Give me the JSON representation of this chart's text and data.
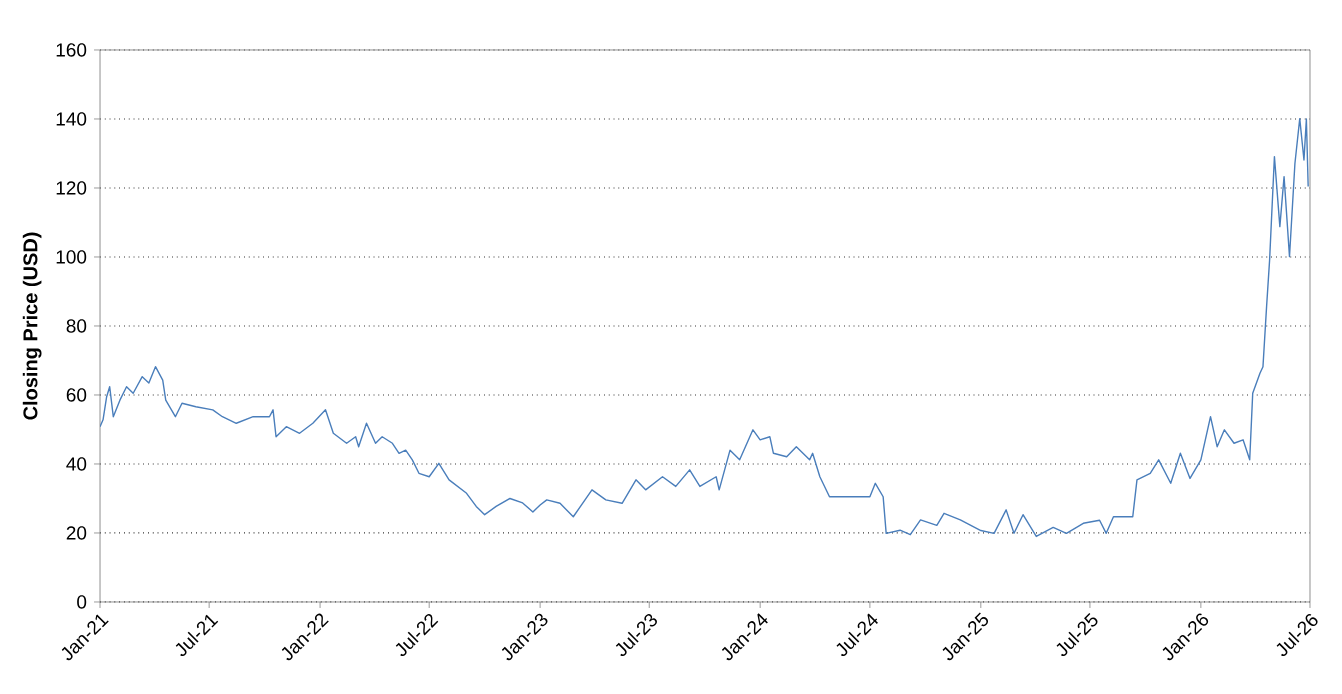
{
  "chart_data": {
    "type": "line",
    "ylabel": "Closing Price (USD)",
    "grid": "y",
    "line_style": "solid",
    "color": "#4a7ebb",
    "xlim": [
      "2021-01",
      "2026-07"
    ],
    "ylim": [
      0,
      160
    ],
    "yticks": [
      0,
      20,
      40,
      60,
      80,
      100,
      120,
      140,
      160
    ],
    "xticks": [
      {
        "value": "2021-01",
        "label": "Jan-21"
      },
      {
        "value": "2021-07",
        "label": "Jul-21"
      },
      {
        "value": "2022-01",
        "label": "Jan-22"
      },
      {
        "value": "2022-07",
        "label": "Jul-22"
      },
      {
        "value": "2023-01",
        "label": "Jan-23"
      },
      {
        "value": "2023-07",
        "label": "Jul-23"
      },
      {
        "value": "2024-01",
        "label": "Jan-24"
      },
      {
        "value": "2024-07",
        "label": "Jul-24"
      },
      {
        "value": "2025-01",
        "label": "Jan-25"
      },
      {
        "value": "2025-07",
        "label": "Jul-25"
      },
      {
        "value": "2026-01",
        "label": "Jan-26"
      },
      {
        "value": "2026-07",
        "label": "Jul-26"
      }
    ],
    "x": [
      "2021-01-01",
      "2021-01-06",
      "2021-01-12",
      "2021-01-17",
      "2021-01-23",
      "2021-02-03",
      "2021-02-14",
      "2021-02-25",
      "2021-03-12",
      "2021-03-23",
      "2021-04-03",
      "2021-04-15",
      "2021-04-20",
      "2021-05-06",
      "2021-05-17",
      "2021-06-09",
      "2021-07-07",
      "2021-07-23",
      "2021-08-15",
      "2021-09-12",
      "2021-10-09",
      "2021-10-15",
      "2021-10-20",
      "2021-11-06",
      "2021-11-28",
      "2021-12-20",
      "2022-01-10",
      "2022-01-23",
      "2022-02-14",
      "2022-03-01",
      "2022-03-06",
      "2022-03-19",
      "2022-04-03",
      "2022-04-14",
      "2022-05-01",
      "2022-05-12",
      "2022-05-23",
      "2022-06-03",
      "2022-06-14",
      "2022-07-01",
      "2022-07-17",
      "2022-08-03",
      "2022-09-01",
      "2022-09-17",
      "2022-10-01",
      "2022-10-20",
      "2022-11-12",
      "2022-12-03",
      "2022-12-20",
      "2023-01-01",
      "2023-01-12",
      "2023-02-03",
      "2023-02-25",
      "2023-03-28",
      "2023-04-20",
      "2023-05-17",
      "2023-06-09",
      "2023-06-25",
      "2023-07-23",
      "2023-08-14",
      "2023-09-06",
      "2023-09-23",
      "2023-10-20",
      "2023-10-25",
      "2023-11-12",
      "2023-11-28",
      "2023-12-20",
      "2024-01-01",
      "2024-01-17",
      "2024-01-23",
      "2024-02-14",
      "2024-03-01",
      "2024-03-23",
      "2024-03-28",
      "2024-04-09",
      "2024-04-25",
      "2024-05-23",
      "2024-07-01",
      "2024-07-10",
      "2024-07-23",
      "2024-07-28",
      "2024-08-20",
      "2024-09-06",
      "2024-09-23",
      "2024-10-20",
      "2024-11-01",
      "2024-11-28",
      "2025-01-01",
      "2025-01-23",
      "2025-02-12",
      "2025-02-25",
      "2025-03-12",
      "2025-04-03",
      "2025-05-01",
      "2025-05-23",
      "2025-06-20",
      "2025-07-17",
      "2025-07-28",
      "2025-08-09",
      "2025-09-10",
      "2025-09-17",
      "2025-10-09",
      "2025-10-23",
      "2025-11-12",
      "2025-11-28",
      "2025-12-14",
      "2026-01-01",
      "2026-01-17",
      "2026-01-28",
      "2026-02-09",
      "2026-02-25",
      "2026-03-12",
      "2026-03-23",
      "2026-03-28",
      "2026-04-09",
      "2026-04-14",
      "2026-04-20",
      "2026-04-25",
      "2026-05-03",
      "2026-05-12",
      "2026-05-19",
      "2026-05-28",
      "2026-06-06",
      "2026-06-14",
      "2026-06-21",
      "2026-06-25",
      "2026-06-28"
    ],
    "values": [
      50.8,
      52.8,
      59.5,
      62.4,
      53.7,
      58.5,
      62.4,
      60.5,
      65.3,
      63.5,
      68.2,
      64.3,
      58.5,
      53.7,
      57.6,
      56.6,
      55.7,
      53.7,
      51.8,
      53.7,
      53.7,
      55.7,
      47.9,
      50.8,
      48.9,
      51.8,
      55.7,
      48.9,
      46,
      47.9,
      45,
      51.8,
      46,
      47.9,
      46,
      43.1,
      44,
      41.2,
      37.3,
      36.3,
      40.2,
      35.4,
      31.5,
      27.7,
      25.3,
      27.7,
      30,
      28.7,
      26.1,
      28.1,
      29.6,
      28.6,
      24.7,
      32.5,
      29.6,
      28.6,
      35.4,
      32.5,
      36.3,
      33.5,
      38.3,
      33.5,
      36.3,
      32.5,
      44,
      41.2,
      49.9,
      47,
      47.9,
      43.1,
      42.1,
      45,
      41.2,
      43.1,
      36.3,
      30.5,
      30.5,
      30.5,
      34.4,
      30.5,
      19.9,
      20.8,
      19.5,
      23.8,
      22.2,
      25.7,
      23.8,
      20.7,
      19.9,
      26.7,
      19.9,
      25.3,
      19,
      21.6,
      19.9,
      22.8,
      23.7,
      19.9,
      24.7,
      24.7,
      35.4,
      37.3,
      41.2,
      34.4,
      43.1,
      35.8,
      41.2,
      53.7,
      45,
      49.9,
      46,
      47,
      41.2,
      60.5,
      66.3,
      68.2,
      85.6,
      99.1,
      129.1,
      108.8,
      123.3,
      100.1,
      127.1,
      140.1,
      128.1,
      140,
      120.4
    ]
  }
}
